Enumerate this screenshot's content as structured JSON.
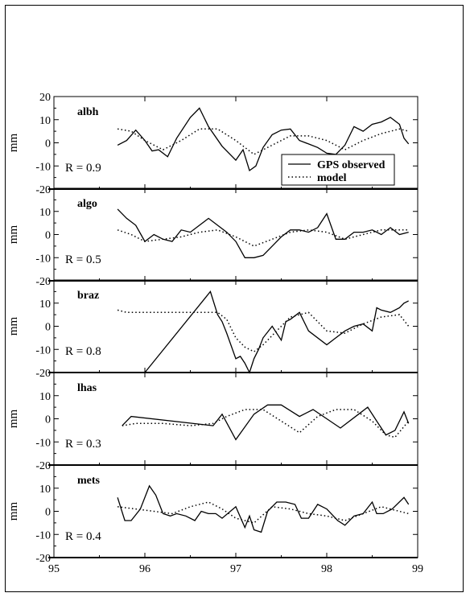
{
  "chart_data": [
    {
      "type": "line",
      "station": "albh",
      "r_label": "R = 0.9",
      "ylabel": "mm",
      "ylim": [
        -20,
        20
      ],
      "yticks": [
        "20",
        "10",
        "0",
        "-10",
        "-20"
      ],
      "series": [
        {
          "name": "GPS observed",
          "style": "solid",
          "x": [
            95.7,
            95.8,
            95.9,
            96.0,
            96.08,
            96.15,
            96.25,
            96.35,
            96.5,
            96.6,
            96.7,
            96.85,
            97.0,
            97.08,
            97.15,
            97.22,
            97.3,
            97.4,
            97.5,
            97.6,
            97.7,
            97.8,
            97.9,
            98.0,
            98.1,
            98.2,
            98.3,
            98.4,
            98.5,
            98.6,
            98.7,
            98.8,
            98.85,
            98.9
          ],
          "y": [
            -1,
            1,
            5.5,
            1,
            -3.5,
            -3,
            -6,
            2,
            11,
            15,
            7,
            -1.5,
            -7.5,
            -3,
            -12,
            -10,
            -2,
            3.5,
            5.5,
            6,
            1,
            -0.5,
            -2,
            -4.5,
            -5,
            -1,
            7,
            5,
            8,
            9,
            11,
            8,
            2,
            -0.5
          ]
        },
        {
          "name": "model",
          "style": "dotted",
          "x": [
            95.7,
            95.85,
            96.0,
            96.2,
            96.4,
            96.6,
            96.8,
            97.0,
            97.2,
            97.4,
            97.6,
            97.8,
            98.0,
            98.2,
            98.4,
            98.6,
            98.8,
            98.9
          ],
          "y": [
            6,
            5,
            1,
            -3,
            1,
            6,
            6,
            1,
            -5,
            -1,
            3,
            3,
            1,
            -3,
            1,
            4,
            6,
            5
          ]
        }
      ]
    },
    {
      "type": "line",
      "station": "algo",
      "r_label": "R = 0.5",
      "ylabel": "mm",
      "ylim": [
        -20,
        20
      ],
      "yticks": [
        "10",
        "0",
        "-10",
        "-20"
      ],
      "series": [
        {
          "name": "GPS observed",
          "style": "solid",
          "x": [
            95.7,
            95.8,
            95.9,
            96.0,
            96.1,
            96.2,
            96.3,
            96.4,
            96.5,
            96.6,
            96.7,
            96.8,
            96.9,
            97.0,
            97.1,
            97.2,
            97.3,
            97.4,
            97.5,
            97.6,
            97.7,
            97.8,
            97.9,
            98.0,
            98.1,
            98.2,
            98.3,
            98.4,
            98.5,
            98.6,
            98.7,
            98.8,
            98.9
          ],
          "y": [
            11,
            7,
            4,
            -3,
            0,
            -2,
            -3,
            2,
            1,
            4,
            7,
            4,
            1,
            -3,
            -10,
            -10,
            -9,
            -5,
            -1,
            2,
            2,
            1,
            3,
            9,
            -2,
            -2,
            1,
            1,
            2,
            0,
            3,
            0,
            1
          ]
        },
        {
          "name": "model",
          "style": "dotted",
          "x": [
            95.7,
            95.85,
            96.0,
            96.2,
            96.4,
            96.6,
            96.8,
            97.0,
            97.2,
            97.4,
            97.6,
            97.8,
            98.0,
            98.2,
            98.4,
            98.6,
            98.8,
            98.9
          ],
          "y": [
            2,
            0,
            -3,
            -2,
            -1,
            1,
            2,
            -1,
            -5,
            -2,
            1,
            2,
            1,
            -2,
            0,
            2,
            2,
            2
          ]
        }
      ]
    },
    {
      "type": "line",
      "station": "braz",
      "r_label": "R = 0.8",
      "ylabel": "mm",
      "ylim": [
        -20,
        20
      ],
      "yticks": [
        "10",
        "0",
        "-10",
        "-20"
      ],
      "series": [
        {
          "name": "GPS observed",
          "style": "solid",
          "x": [
            96.0,
            96.72,
            96.8,
            96.85,
            96.9,
            97.0,
            97.05,
            97.1,
            97.15,
            97.2,
            97.25,
            97.3,
            97.4,
            97.5,
            97.55,
            97.6,
            97.7,
            97.8,
            98.0,
            98.1,
            98.2,
            98.3,
            98.4,
            98.5,
            98.55,
            98.6,
            98.7,
            98.8,
            98.85,
            98.9
          ],
          "y": [
            -20,
            15,
            5,
            2,
            -3,
            -14,
            -13,
            -16,
            -21,
            -14,
            -10,
            -5,
            0,
            -6,
            2,
            3,
            6,
            -2,
            -8,
            -5,
            -2,
            0,
            1,
            -2,
            8,
            7,
            6,
            8,
            10,
            11
          ]
        },
        {
          "name": "model",
          "style": "dotted",
          "x": [
            95.7,
            95.8,
            96.0,
            96.2,
            96.4,
            96.6,
            96.8,
            96.9,
            97.0,
            97.1,
            97.2,
            97.3,
            97.4,
            97.6,
            97.8,
            98.0,
            98.2,
            98.4,
            98.6,
            98.8,
            98.9
          ],
          "y": [
            7,
            6,
            6,
            6,
            6,
            6,
            6,
            3,
            -5,
            -9,
            -11,
            -8,
            -4,
            4,
            6,
            -2,
            -3,
            1,
            4,
            5,
            0
          ]
        }
      ]
    },
    {
      "type": "line",
      "station": "lhas",
      "r_label": "R = 0.3",
      "ylabel": "mm",
      "ylim": [
        -20,
        20
      ],
      "yticks": [
        "10",
        "0",
        "-10",
        "-20"
      ],
      "series": [
        {
          "name": "GPS observed",
          "style": "solid",
          "x": [
            95.75,
            95.85,
            96.75,
            96.85,
            97.0,
            97.2,
            97.35,
            97.5,
            97.7,
            97.85,
            98.0,
            98.15,
            98.35,
            98.45,
            98.55,
            98.65,
            98.75,
            98.85,
            98.9
          ],
          "y": [
            -3,
            1,
            -3,
            2,
            -9,
            2,
            6,
            6,
            1,
            4,
            0,
            -4,
            2,
            5,
            -1,
            -7,
            -5,
            3,
            -2
          ]
        },
        {
          "name": "model",
          "style": "dotted",
          "x": [
            95.75,
            95.9,
            96.2,
            96.5,
            96.75,
            96.9,
            97.1,
            97.3,
            97.5,
            97.7,
            97.9,
            98.1,
            98.3,
            98.5,
            98.65,
            98.75,
            98.9
          ],
          "y": [
            -3,
            -2,
            -2,
            -3,
            -2,
            1,
            4,
            4,
            -1,
            -6,
            1,
            4,
            4,
            -1,
            -7,
            -8,
            -1
          ]
        }
      ]
    },
    {
      "type": "line",
      "station": "mets",
      "r_label": "R = 0.4",
      "ylabel": "mm",
      "ylim": [
        -20,
        20
      ],
      "yticks": [
        "10",
        "0",
        "-10",
        "-20"
      ],
      "xlim": [
        95,
        99
      ],
      "xticks": [
        "95",
        "96",
        "97",
        "98",
        "99"
      ],
      "series": [
        {
          "name": "GPS observed",
          "style": "solid",
          "x": [
            95.7,
            95.78,
            95.85,
            95.95,
            96.05,
            96.12,
            96.2,
            96.28,
            96.35,
            96.45,
            96.55,
            96.62,
            96.7,
            96.78,
            96.85,
            97.0,
            97.1,
            97.15,
            97.2,
            97.28,
            97.35,
            97.45,
            97.55,
            97.65,
            97.72,
            97.8,
            97.9,
            98.0,
            98.12,
            98.2,
            98.3,
            98.4,
            98.5,
            98.55,
            98.62,
            98.72,
            98.85,
            98.9
          ],
          "y": [
            6,
            -4,
            -4,
            1,
            11,
            7,
            -1,
            -2,
            -1,
            -2,
            -4,
            0,
            -1,
            -1,
            -3,
            2,
            -7,
            -2,
            -8,
            -9,
            0,
            4,
            4,
            3,
            -3,
            -3,
            3,
            1,
            -4,
            -6,
            -2,
            -1,
            4,
            -1,
            -1,
            1,
            6,
            3
          ]
        },
        {
          "name": "model",
          "style": "dotted",
          "x": [
            95.7,
            95.9,
            96.1,
            96.3,
            96.5,
            96.7,
            96.85,
            97.0,
            97.2,
            97.4,
            97.6,
            97.8,
            98.0,
            98.2,
            98.4,
            98.6,
            98.8,
            98.9
          ],
          "y": [
            2,
            1,
            0,
            -1,
            2,
            4,
            1,
            -3,
            -5,
            2,
            1,
            -1,
            -2,
            -4,
            -1,
            2,
            0,
            -1
          ]
        }
      ]
    }
  ],
  "legend": {
    "entries": [
      {
        "label": "GPS observed",
        "style": "solid"
      },
      {
        "label": "model",
        "style": "dotted"
      }
    ],
    "placement": "inside first panel, lower-right"
  }
}
